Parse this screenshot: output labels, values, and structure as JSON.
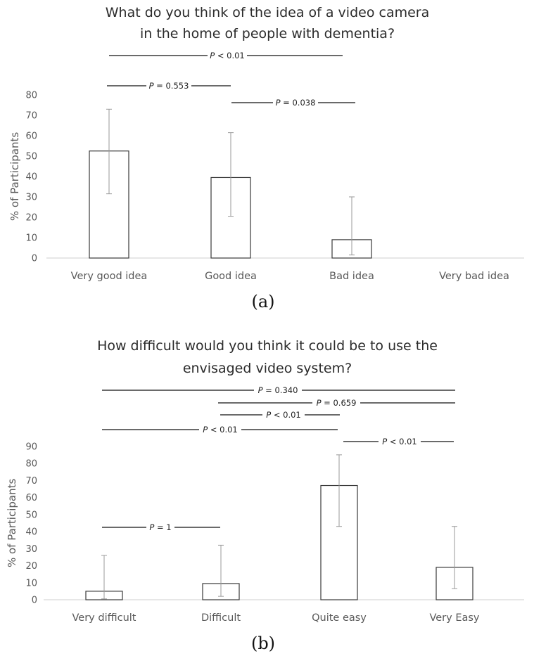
{
  "chart_data": [
    {
      "type": "bar",
      "panel_label": "(a)",
      "title_lines": [
        "What do you think of the idea of a video camera",
        "in the home of people with dementia?"
      ],
      "ylabel": "% of Participants",
      "ylim": [
        0,
        80
      ],
      "yticks": [
        0,
        10,
        20,
        30,
        40,
        50,
        60,
        70,
        80
      ],
      "categories": [
        "Very good idea",
        "Good idea",
        "Bad idea",
        "Very bad idea"
      ],
      "values": [
        52.5,
        39.5,
        9,
        0
      ],
      "error_low": [
        31.5,
        20.5,
        1.5,
        null
      ],
      "error_high": [
        73,
        61.5,
        30,
        null
      ],
      "comparisons": [
        {
          "label": "P < 0.01",
          "from": 0,
          "to": 2
        },
        {
          "label": "P = 0.553",
          "from": 0,
          "to": 1
        },
        {
          "label": "P = 0.038",
          "from": 1,
          "to": 2
        }
      ]
    },
    {
      "type": "bar",
      "panel_label": "(b)",
      "title_lines": [
        "How difficult would you think it could be to use the",
        "envisaged video system?"
      ],
      "ylabel": "% of Participants",
      "ylim": [
        0,
        90
      ],
      "yticks": [
        0,
        10,
        20,
        30,
        40,
        50,
        60,
        70,
        80,
        90
      ],
      "categories": [
        "Very difficult",
        "Difficult",
        "Quite easy",
        "Very Easy"
      ],
      "values": [
        5,
        9.5,
        67,
        19
      ],
      "error_low": [
        0.5,
        2,
        43,
        6.5
      ],
      "error_high": [
        26,
        32,
        85,
        43
      ],
      "comparisons": [
        {
          "label": "P = 0.340",
          "from": 0,
          "to": 3
        },
        {
          "label": "P = 0.659",
          "from": 1,
          "to": 3
        },
        {
          "label": "P < 0.01",
          "from": 1,
          "to": 2
        },
        {
          "label": "P < 0.01",
          "from": 0,
          "to": 2
        },
        {
          "label": "P < 0.01",
          "from": 2,
          "to": 3
        },
        {
          "label": "P = 1",
          "from": 0,
          "to": 1
        }
      ]
    }
  ]
}
